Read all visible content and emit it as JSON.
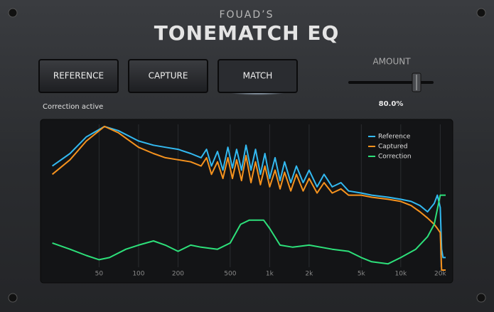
{
  "header": {
    "brand": "FOUAD’S",
    "title": "TONEMATCH EQ"
  },
  "buttons": {
    "items": [
      "REFERENCE",
      "CAPTURE",
      "MATCH"
    ],
    "active": 2
  },
  "status": "Correction active",
  "amount": {
    "label": "AMOUNT",
    "value": 80.0,
    "value_label": "80.0%",
    "range": [
      0,
      100
    ]
  },
  "chart_data": {
    "type": "line",
    "xscale": "log",
    "grid": true,
    "legend": "upper right",
    "xlim": [
      20,
      22000
    ],
    "ylim": [
      -30,
      5
    ],
    "xticks": [
      50,
      100,
      200,
      500,
      {
        "value": 1000,
        "label": "1k"
      },
      {
        "value": 2000,
        "label": "2k"
      },
      {
        "value": 5000,
        "label": "5k"
      },
      {
        "value": 10000,
        "label": "10k"
      },
      {
        "value": 20000,
        "label": "20k"
      }
    ],
    "series": [
      {
        "name": "Reference",
        "color": "#33b9f0",
        "x": [
          22,
          30,
          40,
          55,
          70,
          100,
          130,
          160,
          200,
          250,
          300,
          330,
          360,
          400,
          440,
          480,
          520,
          560,
          610,
          660,
          720,
          780,
          850,
          920,
          1000,
          1100,
          1200,
          1300,
          1450,
          1600,
          1800,
          2000,
          2300,
          2600,
          3000,
          3500,
          4000,
          5000,
          6000,
          8000,
          10000,
          12000,
          14000,
          16000,
          18000,
          19000,
          20000,
          20500,
          21000,
          22000
        ],
        "values": [
          -5,
          -2,
          2,
          4.5,
          3.5,
          1,
          0,
          -0.5,
          -1,
          -2,
          -3,
          -1,
          -5,
          -1.5,
          -6,
          -0.5,
          -5.5,
          -1,
          -6,
          0,
          -6,
          -1,
          -7,
          -2,
          -8,
          -3,
          -8.5,
          -4,
          -9,
          -5,
          -9,
          -6,
          -10,
          -7,
          -10,
          -9,
          -11,
          -11.5,
          -12,
          -12.5,
          -13,
          -13.5,
          -14.5,
          -16,
          -14,
          -12,
          -15,
          -25,
          -27,
          -27
        ]
      },
      {
        "name": "Captured",
        "color": "#f5921e",
        "x": [
          22,
          30,
          40,
          55,
          70,
          100,
          130,
          160,
          200,
          250,
          300,
          330,
          360,
          400,
          440,
          480,
          520,
          560,
          610,
          660,
          720,
          780,
          850,
          920,
          1000,
          1100,
          1200,
          1300,
          1450,
          1600,
          1800,
          2000,
          2300,
          2600,
          3000,
          3500,
          4000,
          5000,
          6000,
          8000,
          10000,
          12000,
          14000,
          16000,
          18000,
          19000,
          20000,
          20500,
          22000
        ],
        "values": [
          -7,
          -3.5,
          1,
          4.5,
          3,
          -0.5,
          -2,
          -3,
          -3.5,
          -4,
          -5,
          -3,
          -7,
          -4,
          -8,
          -3,
          -8,
          -3.5,
          -8.5,
          -2.5,
          -9,
          -4,
          -9.5,
          -5,
          -10,
          -6,
          -10.5,
          -6.5,
          -11,
          -7,
          -11,
          -8,
          -11.5,
          -9,
          -11.5,
          -10.5,
          -12,
          -12,
          -12.5,
          -13,
          -13.5,
          -14.5,
          -16,
          -17.5,
          -19,
          -20,
          -21,
          -30,
          -30
        ]
      },
      {
        "name": "Correction",
        "color": "#2de07a",
        "x": [
          22,
          30,
          40,
          50,
          60,
          80,
          100,
          130,
          160,
          200,
          250,
          300,
          400,
          500,
          600,
          700,
          900,
          1000,
          1200,
          1500,
          2000,
          3000,
          4000,
          5000,
          6000,
          8000,
          10000,
          13000,
          16000,
          18000,
          20000,
          21000,
          22000
        ],
        "values": [
          -23.5,
          -25,
          -26.5,
          -27.5,
          -27,
          -25,
          -24,
          -23,
          -24,
          -25.5,
          -24,
          -24.5,
          -25,
          -23.5,
          -19,
          -18,
          -18,
          -20,
          -24,
          -24.5,
          -24,
          -25,
          -25.5,
          -27,
          -28,
          -28.5,
          -27,
          -25,
          -22,
          -19,
          -12,
          -12,
          -12
        ]
      }
    ]
  }
}
